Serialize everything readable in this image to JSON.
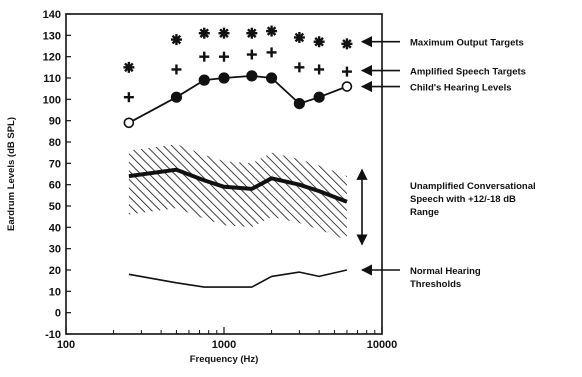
{
  "chart_data": {
    "type": "scatter",
    "xlabel": "Frequency (Hz)",
    "ylabel": "Eardrum Levels (dB SPL)",
    "x_scale": "log",
    "xlim": [
      100,
      10000
    ],
    "ylim": [
      -10,
      140
    ],
    "x_ticks": [
      "100",
      "1000",
      "10000"
    ],
    "y_ticks": [
      "-10",
      "0",
      "10",
      "20",
      "30",
      "40",
      "50",
      "60",
      "70",
      "80",
      "90",
      "100",
      "110",
      "120",
      "130",
      "140"
    ],
    "grid": false,
    "series": [
      {
        "name": "Maximum Output Targets",
        "marker": "asterisk",
        "x": [
          250,
          500,
          750,
          1000,
          1500,
          2000,
          3000,
          4000,
          6000
        ],
        "y": [
          115,
          128,
          131,
          131,
          131,
          132,
          129,
          127,
          126
        ]
      },
      {
        "name": "Amplified Speech Targets",
        "marker": "plus",
        "x": [
          250,
          500,
          750,
          1000,
          1500,
          2000,
          3000,
          4000,
          6000
        ],
        "y": [
          101,
          114,
          120,
          120,
          121,
          122,
          115,
          114,
          113
        ]
      },
      {
        "name": "Child's Hearing Levels",
        "marker": "circle-line",
        "x": [
          250,
          500,
          750,
          1000,
          1500,
          2000,
          3000,
          4000,
          6000
        ],
        "y": [
          89,
          101,
          109,
          110,
          111,
          110,
          98,
          101,
          106
        ]
      },
      {
        "name": "Unamplified Conversational Speech with +12/-18 dB Range",
        "type": "band",
        "x": [
          250,
          500,
          750,
          1000,
          1500,
          2000,
          3000,
          4000,
          6000
        ],
        "y": [
          64,
          67,
          62,
          59,
          58,
          63,
          60,
          57,
          52
        ],
        "upper": [
          76,
          79,
          74,
          71,
          70,
          75,
          72,
          69,
          64
        ],
        "lower": [
          46,
          49,
          44,
          41,
          40,
          45,
          42,
          39,
          34
        ]
      },
      {
        "name": "Normal Hearing Thresholds",
        "marker": "line",
        "x": [
          250,
          500,
          750,
          1000,
          1500,
          2000,
          3000,
          4000,
          6000
        ],
        "y": [
          18,
          14,
          12,
          12,
          12,
          17,
          19,
          17,
          20
        ]
      }
    ],
    "annotations": [
      {
        "text": "Maximum Output Targets",
        "series": 0
      },
      {
        "text": "Amplified Speech Targets",
        "series": 1
      },
      {
        "text": "Child's Hearing Levels",
        "series": 2
      },
      {
        "text": "Unamplified Conversational Speech with +12/-18 dB Range",
        "series": 3
      },
      {
        "text": "Normal Hearing Thresholds",
        "series": 4
      }
    ]
  }
}
